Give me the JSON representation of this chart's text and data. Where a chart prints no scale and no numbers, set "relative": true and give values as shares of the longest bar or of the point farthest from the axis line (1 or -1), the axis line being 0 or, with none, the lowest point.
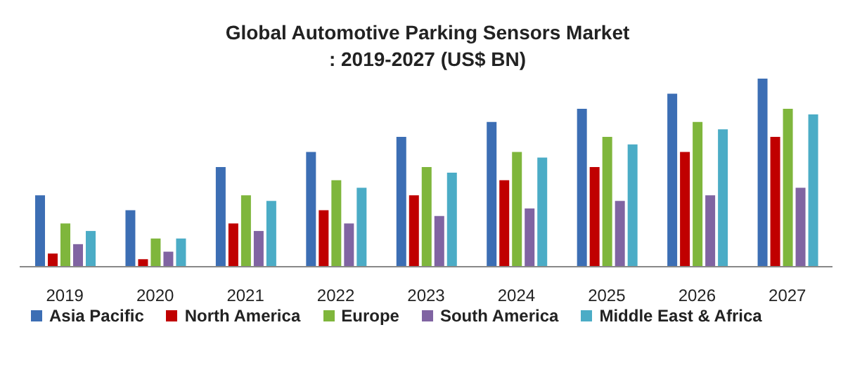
{
  "chart_data": {
    "type": "bar",
    "title": "Global Automotive Parking Sensors Market",
    "subtitle": ": 2019-2027 (US$ BN)",
    "relative": true,
    "legend": "bottom",
    "grid": false,
    "categories": [
      "2019",
      "2020",
      "2021",
      "2022",
      "2023",
      "2024",
      "2025",
      "2026",
      "2027"
    ],
    "series": [
      {
        "name": "Asia Pacific",
        "color": "#3c6eb4",
        "values": [
          0.38,
          0.3,
          0.53,
          0.61,
          0.69,
          0.77,
          0.84,
          0.92,
          1
        ]
      },
      {
        "name": "North America",
        "color": "#c00000",
        "values": [
          0.07,
          0.04,
          0.23,
          0.3,
          0.38,
          0.46,
          0.53,
          0.61,
          0.69
        ]
      },
      {
        "name": "Europe",
        "color": "#7fb63c",
        "values": [
          0.23,
          0.15,
          0.38,
          0.46,
          0.53,
          0.61,
          0.69,
          0.77,
          0.84
        ]
      },
      {
        "name": "South America",
        "color": "#8064a2",
        "values": [
          0.12,
          0.08,
          0.19,
          0.23,
          0.27,
          0.31,
          0.35,
          0.38,
          0.42
        ]
      },
      {
        "name": "Middle East & Africa",
        "color": "#4bacc6",
        "values": [
          0.19,
          0.15,
          0.35,
          0.42,
          0.5,
          0.58,
          0.65,
          0.73,
          0.81
        ]
      }
    ]
  }
}
